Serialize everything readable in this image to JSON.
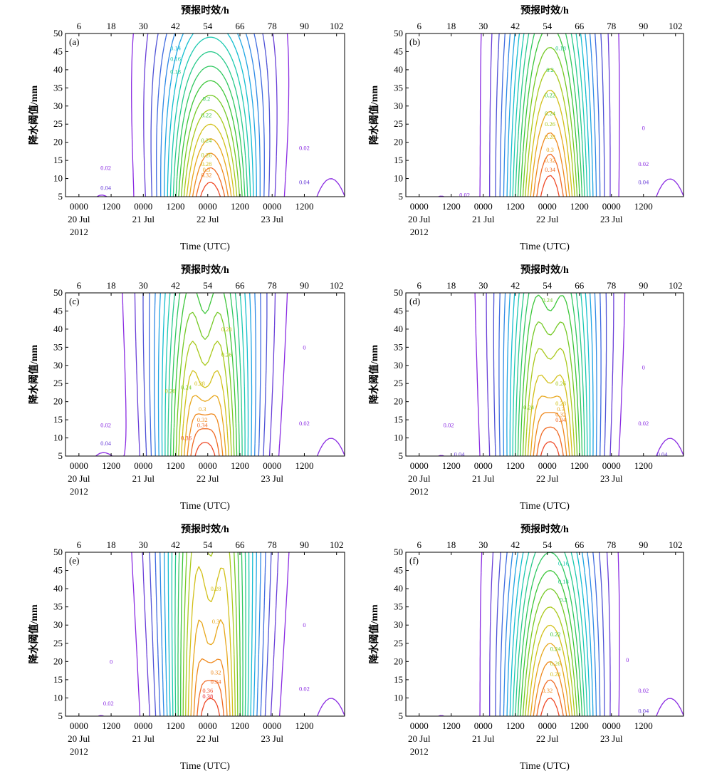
{
  "chart_data": [
    {
      "type": "contour",
      "panel_label": "(a)",
      "top_axis_label": "预报时效/h",
      "top_ticks": [
        "6",
        "18",
        "30",
        "42",
        "54",
        "66",
        "78",
        "90",
        "102"
      ],
      "ylabel": "降水阈值/mm",
      "y_ticks": [
        "5",
        "10",
        "15",
        "20",
        "25",
        "30",
        "35",
        "40",
        "45",
        "50"
      ],
      "ylim": [
        5,
        50
      ],
      "xlabel": "Time (UTC)",
      "x_ticks": [
        "0000",
        "1200",
        "0000",
        "1200",
        "0000",
        "1200",
        "0000",
        "1200"
      ],
      "date_labels": [
        "20 Jul",
        "21 Jul",
        "22 Jul",
        "23 Jul"
      ],
      "year_label": "2012",
      "contour_labels": [
        {
          "text": "0.14",
          "lead": 42,
          "mm": 46
        },
        {
          "text": "0.16",
          "lead": 42,
          "mm": 43
        },
        {
          "text": "0.18",
          "lead": 42,
          "mm": 39.5
        },
        {
          "text": "0.2",
          "lead": 53.5,
          "mm": 32
        },
        {
          "text": "0.22",
          "lead": 53.5,
          "mm": 27.5
        },
        {
          "text": "0.24",
          "lead": 53.5,
          "mm": 20.5
        },
        {
          "text": "0.26",
          "lead": 53.5,
          "mm": 16.5
        },
        {
          "text": "0.28",
          "lead": 53.5,
          "mm": 14
        },
        {
          "text": "0.3",
          "lead": 53.5,
          "mm": 12.5
        },
        {
          "text": "0.32",
          "lead": 53.5,
          "mm": 11
        },
        {
          "text": "0.02",
          "lead": 16,
          "mm": 13
        },
        {
          "text": "0.04",
          "lead": 16,
          "mm": 7.5
        },
        {
          "text": "0.02",
          "lead": 90,
          "mm": 18.5
        },
        {
          "text": "0.04",
          "lead": 90,
          "mm": 9
        }
      ]
    },
    {
      "type": "contour",
      "panel_label": "(b)",
      "top_axis_label": "预报时效/h",
      "top_ticks": [
        "6",
        "18",
        "30",
        "42",
        "54",
        "66",
        "78",
        "90",
        "102"
      ],
      "ylabel": "降水阈值/mm",
      "y_ticks": [
        "5",
        "10",
        "15",
        "20",
        "25",
        "30",
        "35",
        "40",
        "45",
        "50"
      ],
      "ylim": [
        5,
        50
      ],
      "xlabel": "Time (UTC)",
      "x_ticks": [
        "0000",
        "1200",
        "0000",
        "1200",
        "0000",
        "1200",
        "0000",
        "1200"
      ],
      "date_labels": [
        "20 Jul",
        "21 Jul",
        "22 Jul",
        "23 Jul"
      ],
      "year_label": "2012",
      "contour_labels": [
        {
          "text": "0.18",
          "lead": 59,
          "mm": 46
        },
        {
          "text": "0.2",
          "lead": 55,
          "mm": 40
        },
        {
          "text": "0.22",
          "lead": 55,
          "mm": 33
        },
        {
          "text": "0.24",
          "lead": 55,
          "mm": 28
        },
        {
          "text": "0.26",
          "lead": 55,
          "mm": 25
        },
        {
          "text": "0.28",
          "lead": 55,
          "mm": 21.5
        },
        {
          "text": "0.3",
          "lead": 55,
          "mm": 18
        },
        {
          "text": "0.32",
          "lead": 55,
          "mm": 15
        },
        {
          "text": "0.34",
          "lead": 55,
          "mm": 12.5
        },
        {
          "text": "0.02",
          "lead": 23,
          "mm": 5.5
        },
        {
          "text": "0",
          "lead": 90,
          "mm": 24
        },
        {
          "text": "0.02",
          "lead": 90,
          "mm": 14
        },
        {
          "text": "0.04",
          "lead": 90,
          "mm": 9
        }
      ]
    },
    {
      "type": "contour",
      "panel_label": "(c)",
      "top_axis_label": "预报时效/h",
      "top_ticks": [
        "6",
        "18",
        "30",
        "42",
        "54",
        "66",
        "78",
        "90",
        "102"
      ],
      "ylabel": "降水阈值/mm",
      "y_ticks": [
        "5",
        "10",
        "15",
        "20",
        "25",
        "30",
        "35",
        "40",
        "45",
        "50"
      ],
      "ylim": [
        5,
        50
      ],
      "xlabel": "Time (UTC)",
      "x_ticks": [
        "0000",
        "1200",
        "0000",
        "1200",
        "0000",
        "1200",
        "0000",
        "1200"
      ],
      "date_labels": [
        "20 Jul",
        "21 Jul",
        "22 Jul",
        "23 Jul"
      ],
      "year_label": "2012",
      "contour_labels": [
        {
          "text": "0.28",
          "lead": 61,
          "mm": 40
        },
        {
          "text": "0.26",
          "lead": 61,
          "mm": 33
        },
        {
          "text": "0.28",
          "lead": 51,
          "mm": 25
        },
        {
          "text": "0.24",
          "lead": 46,
          "mm": 24
        },
        {
          "text": "0.26",
          "lead": 40,
          "mm": 23
        },
        {
          "text": "0.3",
          "lead": 52,
          "mm": 18
        },
        {
          "text": "0.32",
          "lead": 52,
          "mm": 15
        },
        {
          "text": "0.34",
          "lead": 52,
          "mm": 13.5
        },
        {
          "text": "0.36",
          "lead": 46,
          "mm": 10
        },
        {
          "text": "0.02",
          "lead": 16,
          "mm": 13.5
        },
        {
          "text": "0.04",
          "lead": 16,
          "mm": 8.5
        },
        {
          "text": "0",
          "lead": 90,
          "mm": 35
        },
        {
          "text": "0.02",
          "lead": 90,
          "mm": 14
        }
      ]
    },
    {
      "type": "contour",
      "panel_label": "(d)",
      "top_axis_label": "预报时效/h",
      "top_ticks": [
        "6",
        "18",
        "30",
        "42",
        "54",
        "66",
        "78",
        "90",
        "102"
      ],
      "ylabel": "降水阈值/mm",
      "y_ticks": [
        "5",
        "10",
        "15",
        "20",
        "25",
        "30",
        "35",
        "40",
        "45",
        "50"
      ],
      "ylim": [
        5,
        50
      ],
      "xlabel": "Time (UTC)",
      "x_ticks": [
        "0000",
        "1200",
        "0000",
        "1200",
        "0000",
        "1200",
        "0000",
        "1200"
      ],
      "date_labels": [
        "20 Jul",
        "21 Jul",
        "22 Jul",
        "23 Jul"
      ],
      "year_label": "2012",
      "contour_labels": [
        {
          "text": "0.24",
          "lead": 54,
          "mm": 48
        },
        {
          "text": "0.26",
          "lead": 59,
          "mm": 25
        },
        {
          "text": "0.24",
          "lead": 47,
          "mm": 18.5
        },
        {
          "text": "0.28",
          "lead": 59,
          "mm": 19.5
        },
        {
          "text": "0.3",
          "lead": 59,
          "mm": 18
        },
        {
          "text": "0.32",
          "lead": 59,
          "mm": 16.5
        },
        {
          "text": "0.34",
          "lead": 59,
          "mm": 15
        },
        {
          "text": "0.02",
          "lead": 17,
          "mm": 13.5
        },
        {
          "text": "0.04",
          "lead": 21,
          "mm": 5.5
        },
        {
          "text": "0",
          "lead": 90,
          "mm": 29.5
        },
        {
          "text": "0.02",
          "lead": 90,
          "mm": 14
        },
        {
          "text": "0.04",
          "lead": 97,
          "mm": 5.5
        }
      ]
    },
    {
      "type": "contour",
      "panel_label": "(e)",
      "top_axis_label": "预报时效/h",
      "top_ticks": [
        "6",
        "18",
        "30",
        "42",
        "54",
        "66",
        "78",
        "90",
        "102"
      ],
      "ylabel": "降水阈值/mm",
      "y_ticks": [
        "5",
        "10",
        "15",
        "20",
        "25",
        "30",
        "35",
        "40",
        "45",
        "50"
      ],
      "ylim": [
        5,
        50
      ],
      "xlabel": "Time (UTC)",
      "x_ticks": [
        "0000",
        "1200",
        "0000",
        "1200",
        "0000",
        "1200",
        "0000",
        "1200"
      ],
      "date_labels": [
        "20 Jul",
        "21 Jul",
        "22 Jul",
        "23 Jul"
      ],
      "year_label": "2012",
      "contour_labels": [
        {
          "text": "0.28",
          "lead": 57,
          "mm": 40
        },
        {
          "text": "0.3",
          "lead": 57,
          "mm": 31
        },
        {
          "text": "0.32",
          "lead": 57,
          "mm": 17
        },
        {
          "text": "0.34",
          "lead": 57,
          "mm": 14.5
        },
        {
          "text": "0.36",
          "lead": 54,
          "mm": 12
        },
        {
          "text": "0.38",
          "lead": 54,
          "mm": 10.5
        },
        {
          "text": "0",
          "lead": 18,
          "mm": 20
        },
        {
          "text": "0.02",
          "lead": 17,
          "mm": 8.5
        },
        {
          "text": "0",
          "lead": 90,
          "mm": 30
        },
        {
          "text": "0.02",
          "lead": 90,
          "mm": 12.5
        }
      ]
    },
    {
      "type": "contour",
      "panel_label": "(f)",
      "top_axis_label": "预报时效/h",
      "top_ticks": [
        "6",
        "18",
        "30",
        "42",
        "54",
        "66",
        "78",
        "90",
        "102"
      ],
      "ylabel": "降水阈值/mm",
      "y_ticks": [
        "5",
        "10",
        "15",
        "20",
        "25",
        "30",
        "35",
        "40",
        "45",
        "50"
      ],
      "ylim": [
        5,
        50
      ],
      "xlabel": "Time (UTC)",
      "x_ticks": [
        "0000",
        "1200",
        "0000",
        "1200",
        "0000",
        "1200",
        "0000",
        "1200"
      ],
      "date_labels": [
        "20 Jul",
        "21 Jul",
        "22 Jul",
        "23 Jul"
      ],
      "year_label": "2012",
      "contour_labels": [
        {
          "text": "0.16",
          "lead": 60,
          "mm": 47
        },
        {
          "text": "0.18",
          "lead": 60,
          "mm": 42
        },
        {
          "text": "0.2",
          "lead": 60,
          "mm": 37
        },
        {
          "text": "0.22",
          "lead": 57,
          "mm": 27.5
        },
        {
          "text": "0.24",
          "lead": 57,
          "mm": 23.5
        },
        {
          "text": "0.26",
          "lead": 57,
          "mm": 19.5
        },
        {
          "text": "0.28",
          "lead": 57,
          "mm": 16.5
        },
        {
          "text": "0.32",
          "lead": 54,
          "mm": 12
        },
        {
          "text": "0",
          "lead": 84,
          "mm": 20.5
        },
        {
          "text": "0.02",
          "lead": 90,
          "mm": 12
        },
        {
          "text": "0.04",
          "lead": 90,
          "mm": 6.5
        }
      ]
    }
  ]
}
